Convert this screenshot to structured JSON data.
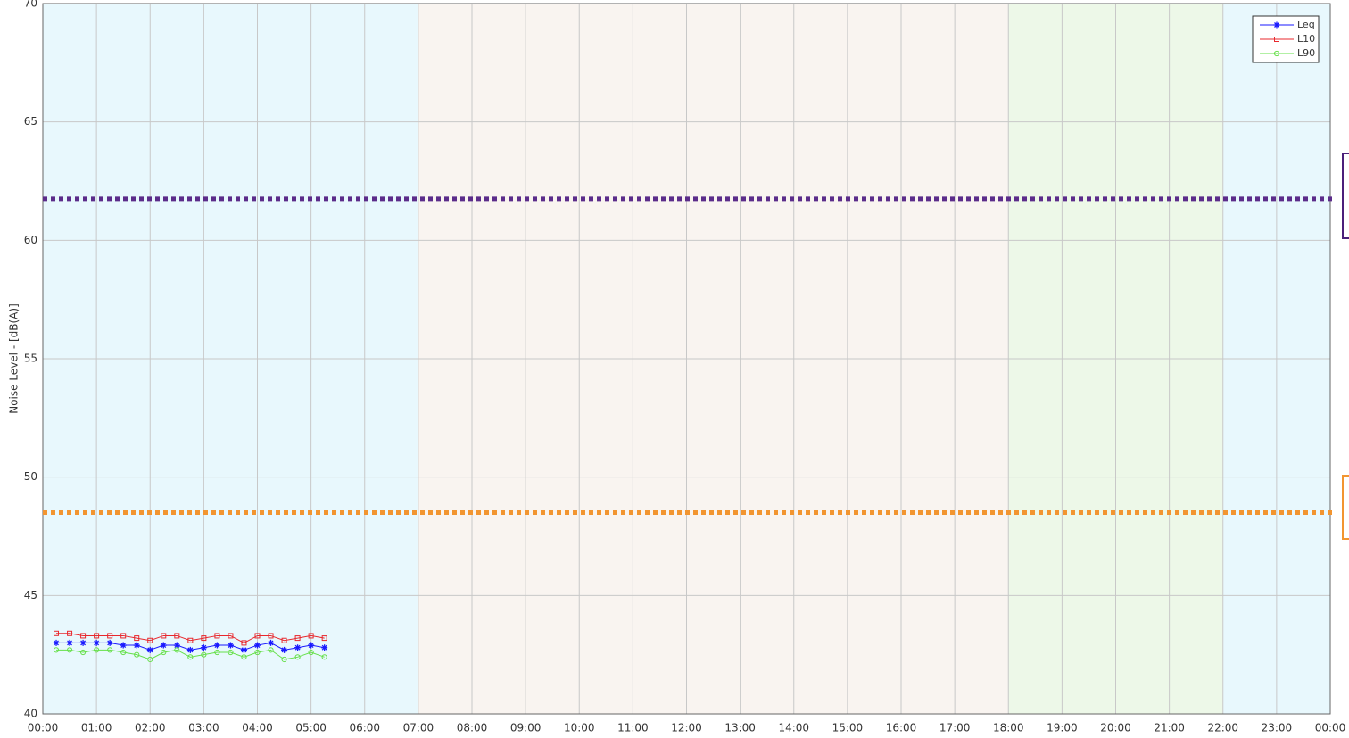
{
  "chart_data": {
    "type": "line",
    "y_label": "Noise Level - [dB(A)]",
    "xlim": [
      0,
      24
    ],
    "xticks": [
      {
        "value": 0,
        "label": "00:00"
      },
      {
        "value": 1,
        "label": "01:00"
      },
      {
        "value": 2,
        "label": "02:00"
      },
      {
        "value": 3,
        "label": "03:00"
      },
      {
        "value": 4,
        "label": "04:00"
      },
      {
        "value": 5,
        "label": "05:00"
      },
      {
        "value": 6,
        "label": "06:00"
      },
      {
        "value": 7,
        "label": "07:00"
      },
      {
        "value": 8,
        "label": "08:00"
      },
      {
        "value": 9,
        "label": "09:00"
      },
      {
        "value": 10,
        "label": "10:00"
      },
      {
        "value": 11,
        "label": "11:00"
      },
      {
        "value": 12,
        "label": "12:00"
      },
      {
        "value": 13,
        "label": "13:00"
      },
      {
        "value": 14,
        "label": "14:00"
      },
      {
        "value": 15,
        "label": "15:00"
      },
      {
        "value": 16,
        "label": "16:00"
      },
      {
        "value": 17,
        "label": "17:00"
      },
      {
        "value": 18,
        "label": "18:00"
      },
      {
        "value": 19,
        "label": "19:00"
      },
      {
        "value": 20,
        "label": "20:00"
      },
      {
        "value": 21,
        "label": "21:00"
      },
      {
        "value": 22,
        "label": "22:00"
      },
      {
        "value": 23,
        "label": "23:00"
      },
      {
        "value": 24,
        "label": "00:00"
      }
    ],
    "ylim": [
      40,
      70
    ],
    "yticks": [
      40,
      45,
      50,
      55,
      60,
      65,
      70
    ],
    "grid": true,
    "legend_position": "upper right",
    "bands": [
      {
        "start": 0,
        "end": 7,
        "color": "#e8f8fd"
      },
      {
        "start": 7,
        "end": 18,
        "color": "#f9f4f0"
      },
      {
        "start": 18,
        "end": 22,
        "color": "#edf8e8"
      },
      {
        "start": 22,
        "end": 24,
        "color": "#e8f8fd"
      }
    ],
    "reference_lines": [
      {
        "value": 61.75,
        "color": "#5b2c8a"
      },
      {
        "value": 48.5,
        "color": "#f29530"
      }
    ],
    "x": [
      0.25,
      0.5,
      0.75,
      1,
      1.25,
      1.5,
      1.75,
      2,
      2.25,
      2.5,
      2.75,
      3,
      3.25,
      3.5,
      3.75,
      4,
      4.25,
      4.5,
      4.75,
      5,
      5.25
    ],
    "series": [
      {
        "name": "Leq",
        "color": "#1a1aff",
        "marker": "star",
        "values": [
          43.0,
          43.0,
          43.0,
          43.0,
          43.0,
          42.9,
          42.9,
          42.7,
          42.9,
          42.9,
          42.7,
          42.8,
          42.9,
          42.9,
          42.7,
          42.9,
          43.0,
          42.7,
          42.8,
          42.9,
          42.8
        ]
      },
      {
        "name": "L10",
        "color": "#e8282d",
        "marker": "square",
        "values": [
          43.4,
          43.4,
          43.3,
          43.3,
          43.3,
          43.3,
          43.2,
          43.1,
          43.3,
          43.3,
          43.1,
          43.2,
          43.3,
          43.3,
          43.0,
          43.3,
          43.3,
          43.1,
          43.2,
          43.3,
          43.2
        ]
      },
      {
        "name": "L90",
        "color": "#66e04a",
        "marker": "circle",
        "values": [
          42.7,
          42.7,
          42.6,
          42.7,
          42.7,
          42.6,
          42.5,
          42.3,
          42.6,
          42.7,
          42.4,
          42.5,
          42.6,
          42.6,
          42.4,
          42.6,
          42.7,
          42.3,
          42.4,
          42.6,
          42.4
        ]
      }
    ]
  }
}
